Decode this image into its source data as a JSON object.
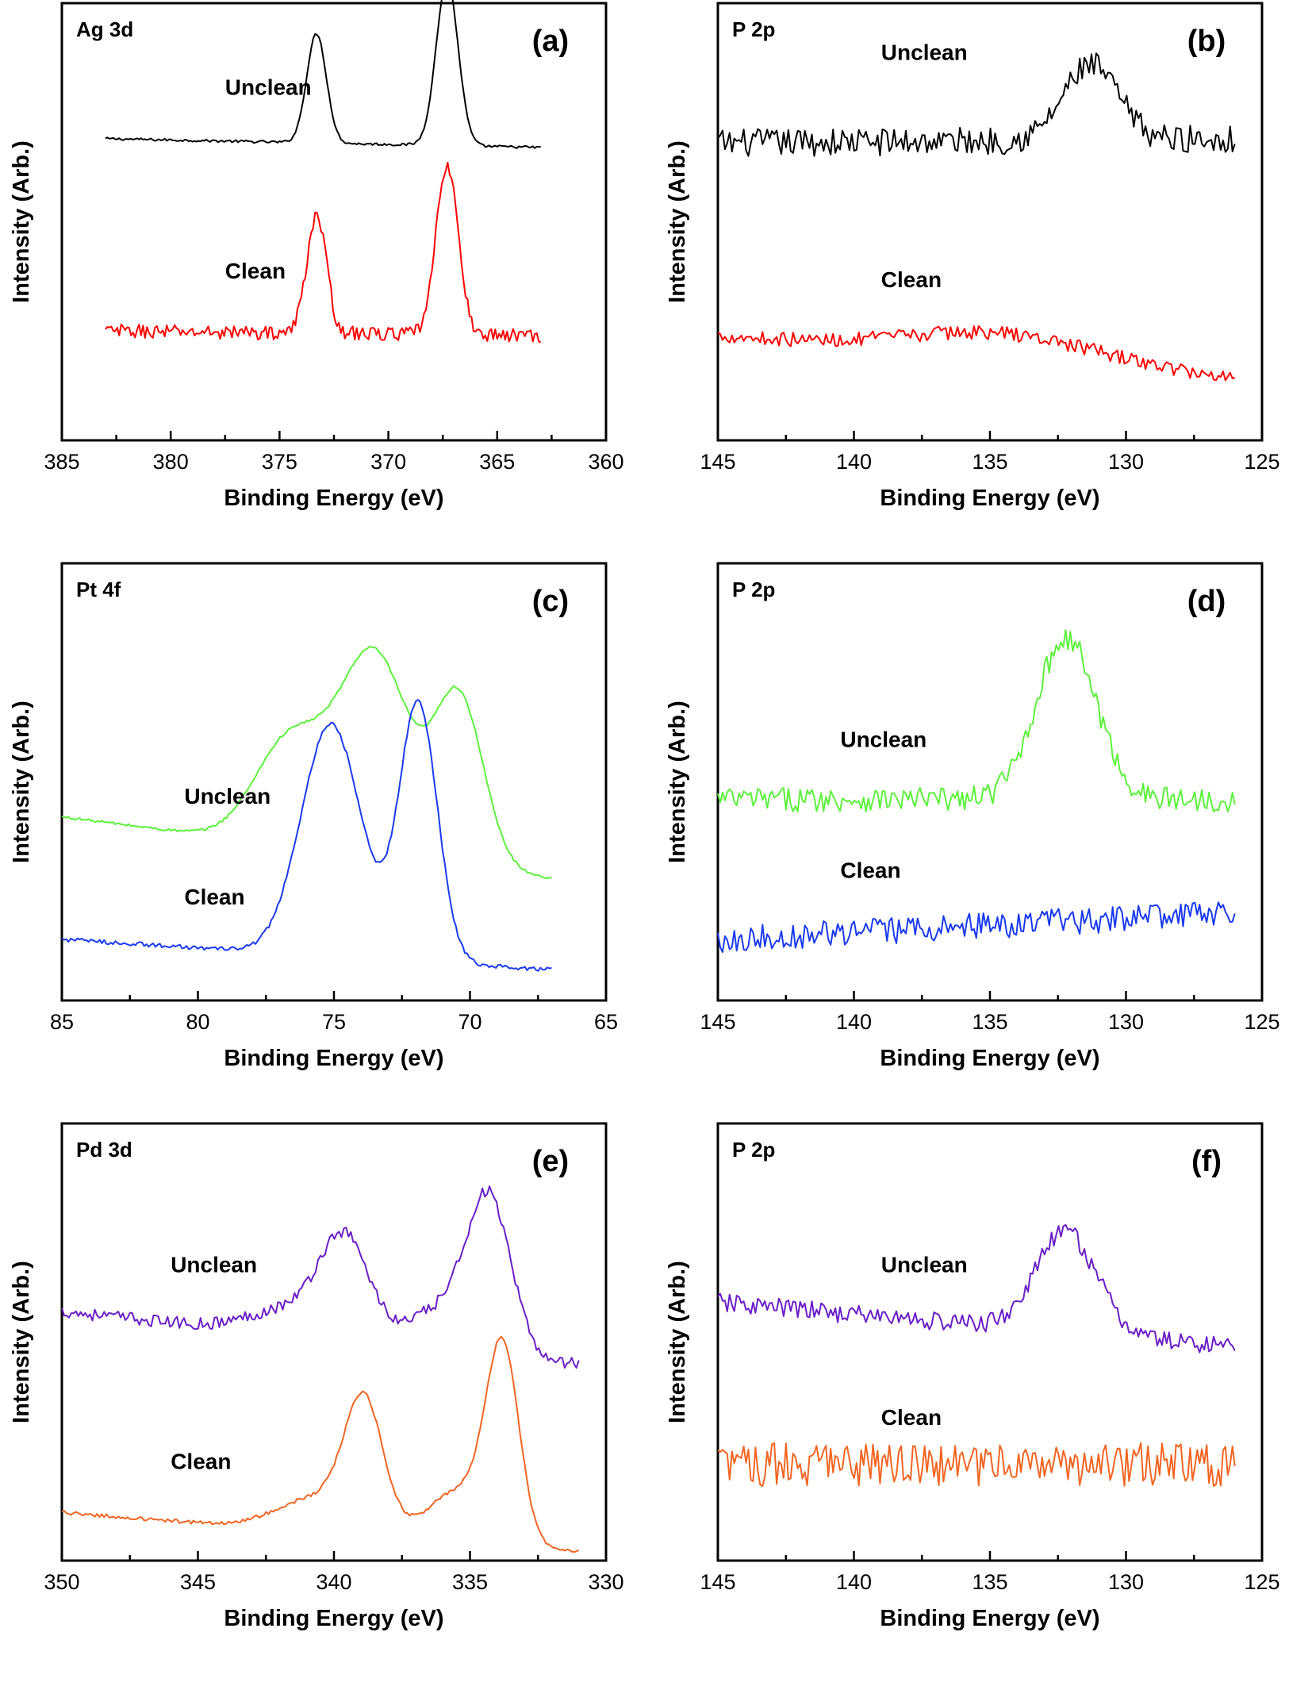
{
  "chart_data": [
    {
      "type": "line",
      "id": "a",
      "panel_label": "(a)",
      "element_label": "Ag 3d",
      "xlabel": "Binding Energy (eV)",
      "ylabel": "Intensity (Arb.)",
      "xlim": [
        385,
        360
      ],
      "x_reversed": true,
      "ylim": [
        0,
        100
      ],
      "xticks": [
        385,
        380,
        375,
        370,
        365,
        360
      ],
      "x_range": [
        383,
        363
      ],
      "series": [
        {
          "name": "Unclean",
          "color": "#000000",
          "baseline": 69,
          "end_baseline": 67,
          "noise": 0.3,
          "peaks": [
            {
              "x": 373.3,
              "h": 25,
              "w": 0.45
            },
            {
              "x": 367.3,
              "h": 38,
              "w": 0.5
            }
          ],
          "label_pos": [
            377.5,
            79
          ]
        },
        {
          "name": "Clean",
          "color": "#ff0000",
          "baseline": 25,
          "end_baseline": 24,
          "noise": 1.6,
          "peaks": [
            {
              "x": 373.3,
              "h": 27,
              "w": 0.45
            },
            {
              "x": 367.3,
              "h": 39,
              "w": 0.5
            }
          ],
          "label_pos": [
            377.5,
            37
          ]
        }
      ]
    },
    {
      "type": "line",
      "id": "b",
      "panel_label": "(b)",
      "element_label": "P 2p",
      "xlabel": "Binding Energy (eV)",
      "ylabel": "Intensity (Arb.)",
      "xlim": [
        145,
        125
      ],
      "x_reversed": true,
      "ylim": [
        0,
        100
      ],
      "xticks": [
        145,
        140,
        135,
        130,
        125
      ],
      "x_range": [
        145,
        126
      ],
      "series": [
        {
          "name": "Unclean",
          "color": "#000000",
          "baseline": 68,
          "end_baseline": 69,
          "noise": 3.2,
          "peaks": [
            {
              "x": 131.3,
              "h": 17,
              "w": 1.0
            }
          ],
          "label_pos": [
            139,
            87
          ]
        },
        {
          "name": "Clean",
          "color": "#ff0000",
          "baseline": 24,
          "end_baseline": 14,
          "noise": 1.6,
          "peaks": [
            {
              "x": 134.5,
              "h": 6,
              "w": 3.5
            }
          ],
          "label_pos": [
            139,
            35
          ]
        }
      ]
    },
    {
      "type": "line",
      "id": "c",
      "panel_label": "(c)",
      "element_label": "Pt 4f",
      "xlabel": "Binding Energy (eV)",
      "ylabel": "Intensity (Arb.)",
      "xlim": [
        85,
        65
      ],
      "x_reversed": true,
      "ylim": [
        0,
        100
      ],
      "xticks": [
        85,
        80,
        75,
        70,
        65
      ],
      "x_range": [
        85,
        67
      ],
      "series": [
        {
          "name": "Unclean",
          "color": "#5cf23c",
          "baseline": 42,
          "end_baseline": 28,
          "noise": 0.3,
          "peaks": [
            {
              "x": 76.6,
              "h": 24,
              "w": 1.3
            },
            {
              "x": 73.5,
              "h": 46,
              "w": 1.3
            },
            {
              "x": 70.4,
              "h": 38,
              "w": 0.9
            }
          ],
          "label_pos": [
            80.5,
            45
          ]
        },
        {
          "name": "Clean",
          "color": "#1a3bf0",
          "baseline": 14,
          "end_baseline": 7,
          "noise": 0.5,
          "peaks": [
            {
              "x": 75.1,
              "h": 53,
              "w": 1.1
            },
            {
              "x": 71.9,
              "h": 59,
              "w": 0.7
            }
          ],
          "label_pos": [
            80.5,
            22
          ]
        }
      ]
    },
    {
      "type": "line",
      "id": "d",
      "panel_label": "(d)",
      "element_label": "P 2p",
      "xlabel": "Binding Energy (eV)",
      "ylabel": "Intensity (Arb.)",
      "xlim": [
        145,
        125
      ],
      "x_reversed": true,
      "ylim": [
        0,
        100
      ],
      "xticks": [
        145,
        140,
        135,
        130,
        125
      ],
      "x_range": [
        145,
        126
      ],
      "series": [
        {
          "name": "Unclean",
          "color": "#5cf23c",
          "baseline": 46,
          "end_baseline": 46,
          "noise": 2.8,
          "peaks": [
            {
              "x": 132.2,
              "h": 37,
              "w": 1.1
            }
          ],
          "label_pos": [
            140.5,
            58
          ]
        },
        {
          "name": "Clean",
          "color": "#1a3bf0",
          "baseline": 14,
          "end_baseline": 20,
          "noise": 3.0,
          "peaks": [],
          "label_pos": [
            140.5,
            28
          ]
        }
      ]
    },
    {
      "type": "line",
      "id": "e",
      "panel_label": "(e)",
      "element_label": "Pd 3d",
      "xlabel": "Binding Energy (eV)",
      "ylabel": "Intensity (Arb.)",
      "xlim": [
        350,
        330
      ],
      "x_reversed": true,
      "ylim": [
        0,
        100
      ],
      "xticks": [
        350,
        345,
        340,
        335,
        330
      ],
      "x_range": [
        350,
        331
      ],
      "series": [
        {
          "name": "Unclean",
          "color": "#6a1fc8",
          "baseline": 57,
          "end_baseline": 45,
          "noise": 1.4,
          "peaks": [
            {
              "x": 339.6,
              "h": 22,
              "w": 0.9
            },
            {
              "x": 334.3,
              "h": 34,
              "w": 0.8
            },
            {
              "x": 341.5,
              "h": 6,
              "w": 1.5
            },
            {
              "x": 336.0,
              "h": 9,
              "w": 1.2
            }
          ],
          "label_pos": [
            346,
            66
          ]
        },
        {
          "name": "Clean",
          "color": "#f26522",
          "baseline": 11,
          "end_baseline": 2,
          "noise": 0.4,
          "peaks": [
            {
              "x": 338.9,
              "h": 28,
              "w": 0.7
            },
            {
              "x": 333.8,
              "h": 42,
              "w": 0.6
            },
            {
              "x": 340.5,
              "h": 8,
              "w": 1.5
            },
            {
              "x": 335.3,
              "h": 12,
              "w": 1.2
            }
          ],
          "label_pos": [
            346,
            21
          ]
        }
      ]
    },
    {
      "type": "line",
      "id": "f",
      "panel_label": "(f)",
      "element_label": "P 2p",
      "xlabel": "Binding Energy (eV)",
      "ylabel": "Intensity (Arb.)",
      "xlim": [
        145,
        125
      ],
      "x_reversed": true,
      "ylim": [
        0,
        100
      ],
      "xticks": [
        145,
        140,
        135,
        130,
        125
      ],
      "x_range": [
        145,
        126
      ],
      "series": [
        {
          "name": "Unclean",
          "color": "#6a1fc8",
          "baseline": 59,
          "end_baseline": 49,
          "noise": 2.2,
          "peaks": [
            {
              "x": 132.2,
              "h": 23,
              "w": 1.1
            }
          ],
          "label_pos": [
            139,
            66
          ]
        },
        {
          "name": "Clean",
          "color": "#f26522",
          "baseline": 22,
          "end_baseline": 22,
          "noise": 5.0,
          "peaks": [],
          "label_pos": [
            139,
            31
          ]
        }
      ]
    }
  ]
}
